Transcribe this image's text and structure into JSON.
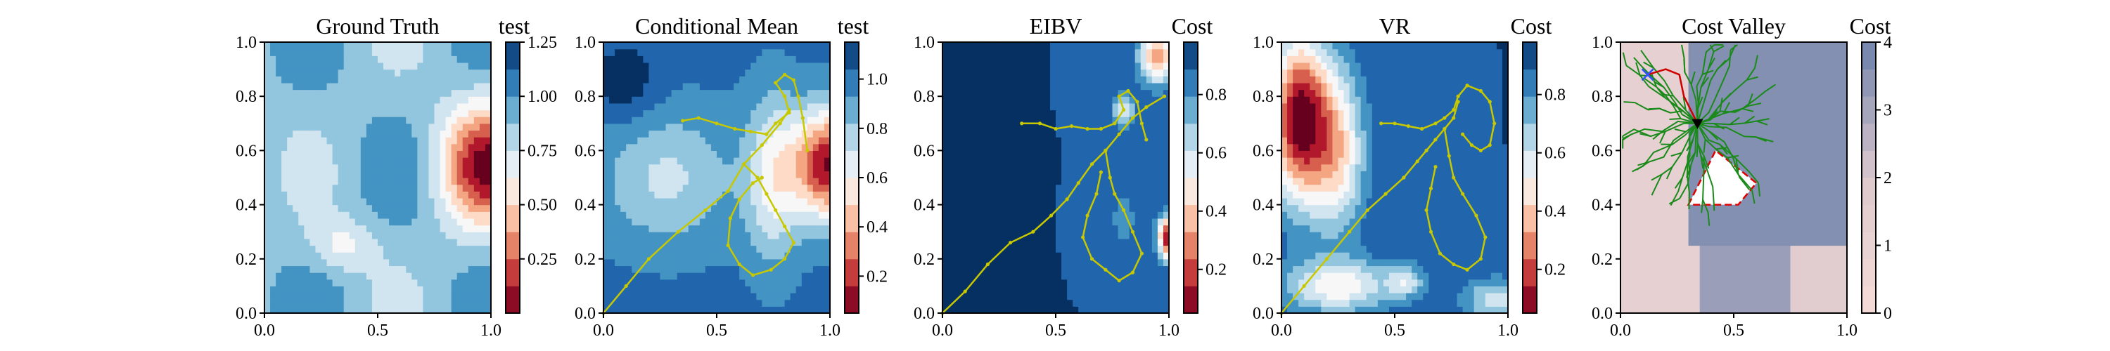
{
  "chart_data": [
    {
      "type": "heatmap",
      "title": "Ground Truth",
      "colorbar_label": "test",
      "colormap": "RdBu",
      "xlim": [
        0,
        1
      ],
      "ylim": [
        0,
        1
      ],
      "xticks": [
        "0.0",
        "0.5",
        "1.0"
      ],
      "yticks": [
        "0.0",
        "0.2",
        "0.4",
        "0.6",
        "0.8",
        "1.0"
      ],
      "colorbar_ticks": [
        "0.25",
        "0.50",
        "0.75",
        "1.00",
        "1.25"
      ],
      "colorbar_range": [
        0.0,
        1.25
      ],
      "paths": []
    },
    {
      "type": "heatmap",
      "title": "Conditional Mean",
      "colorbar_label": "test",
      "colormap": "RdBu",
      "xlim": [
        0,
        1
      ],
      "ylim": [
        0,
        1
      ],
      "xticks": [
        "0.0",
        "0.5",
        "1.0"
      ],
      "yticks": [
        "0.0",
        "0.2",
        "0.4",
        "0.6",
        "0.8",
        "1.0"
      ],
      "colorbar_ticks": [
        "0.2",
        "0.4",
        "0.6",
        "0.8",
        "1.0"
      ],
      "colorbar_range": [
        0.05,
        1.15
      ],
      "paths": [
        {
          "color": "#c8c800",
          "points": [
            [
              0,
              0
            ],
            [
              0.1,
              0.1
            ],
            [
              0.2,
              0.2
            ],
            [
              0.33,
              0.3
            ],
            [
              0.45,
              0.38
            ],
            [
              0.55,
              0.45
            ],
            [
              0.62,
              0.55
            ],
            [
              0.7,
              0.62
            ],
            [
              0.78,
              0.7
            ],
            [
              0.82,
              0.75
            ]
          ]
        },
        {
          "color": "#c8c800",
          "points": [
            [
              0.35,
              0.71
            ],
            [
              0.42,
              0.72
            ],
            [
              0.5,
              0.7
            ],
            [
              0.58,
              0.68
            ],
            [
              0.65,
              0.67
            ],
            [
              0.72,
              0.66
            ],
            [
              0.76,
              0.7
            ],
            [
              0.82,
              0.74
            ],
            [
              0.8,
              0.8
            ],
            [
              0.76,
              0.85
            ],
            [
              0.8,
              0.88
            ],
            [
              0.84,
              0.86
            ],
            [
              0.86,
              0.8
            ],
            [
              0.88,
              0.72
            ],
            [
              0.9,
              0.6
            ]
          ]
        },
        {
          "color": "#c8c800",
          "points": [
            [
              0.62,
              0.55
            ],
            [
              0.68,
              0.5
            ],
            [
              0.72,
              0.44
            ],
            [
              0.76,
              0.38
            ],
            [
              0.8,
              0.32
            ],
            [
              0.84,
              0.26
            ],
            [
              0.8,
              0.2
            ],
            [
              0.74,
              0.16
            ],
            [
              0.66,
              0.14
            ],
            [
              0.6,
              0.18
            ],
            [
              0.55,
              0.25
            ],
            [
              0.56,
              0.35
            ],
            [
              0.6,
              0.42
            ],
            [
              0.66,
              0.48
            ],
            [
              0.7,
              0.5
            ]
          ]
        }
      ]
    },
    {
      "type": "heatmap",
      "title": "EIBV",
      "colorbar_label": "Cost",
      "colormap": "RdBu",
      "xlim": [
        0,
        1
      ],
      "ylim": [
        0,
        1
      ],
      "xticks": [
        "0.0",
        "0.5",
        "1.0"
      ],
      "yticks": [
        "0.0",
        "0.2",
        "0.4",
        "0.6",
        "0.8",
        "1.0"
      ],
      "colorbar_ticks": [
        "0.2",
        "0.4",
        "0.6",
        "0.8"
      ],
      "colorbar_range": [
        0.05,
        0.98
      ],
      "paths": [
        {
          "color": "#c8c800",
          "points": [
            [
              0,
              0
            ],
            [
              0.1,
              0.08
            ],
            [
              0.2,
              0.18
            ],
            [
              0.3,
              0.26
            ],
            [
              0.4,
              0.3
            ],
            [
              0.48,
              0.36
            ],
            [
              0.55,
              0.42
            ],
            [
              0.6,
              0.48
            ],
            [
              0.66,
              0.55
            ],
            [
              0.72,
              0.6
            ],
            [
              0.78,
              0.66
            ],
            [
              0.84,
              0.72
            ],
            [
              0.9,
              0.76
            ],
            [
              0.98,
              0.8
            ]
          ]
        },
        {
          "color": "#c8c800",
          "points": [
            [
              0.35,
              0.7
            ],
            [
              0.43,
              0.7
            ],
            [
              0.5,
              0.68
            ],
            [
              0.57,
              0.69
            ],
            [
              0.64,
              0.68
            ],
            [
              0.7,
              0.68
            ],
            [
              0.76,
              0.7
            ],
            [
              0.8,
              0.75
            ],
            [
              0.78,
              0.8
            ],
            [
              0.82,
              0.82
            ],
            [
              0.86,
              0.78
            ],
            [
              0.88,
              0.7
            ],
            [
              0.9,
              0.64
            ]
          ]
        },
        {
          "color": "#c8c800",
          "points": [
            [
              0.72,
              0.6
            ],
            [
              0.74,
              0.5
            ],
            [
              0.76,
              0.44
            ],
            [
              0.8,
              0.38
            ],
            [
              0.84,
              0.3
            ],
            [
              0.88,
              0.22
            ],
            [
              0.84,
              0.15
            ],
            [
              0.78,
              0.12
            ],
            [
              0.72,
              0.16
            ],
            [
              0.66,
              0.2
            ],
            [
              0.62,
              0.28
            ],
            [
              0.64,
              0.36
            ],
            [
              0.68,
              0.44
            ],
            [
              0.7,
              0.52
            ]
          ]
        }
      ]
    },
    {
      "type": "heatmap",
      "title": "VR",
      "colorbar_label": "Cost",
      "colormap": "RdBu",
      "xlim": [
        0,
        1
      ],
      "ylim": [
        0,
        1
      ],
      "xticks": [
        "0.0",
        "0.5",
        "1.0"
      ],
      "yticks": [
        "0.0",
        "0.2",
        "0.4",
        "0.6",
        "0.8",
        "1.0"
      ],
      "colorbar_ticks": [
        "0.2",
        "0.4",
        "0.6",
        "0.8"
      ],
      "colorbar_range": [
        0.05,
        0.98
      ],
      "paths": [
        {
          "color": "#c8c800",
          "points": [
            [
              0,
              0
            ],
            [
              0.1,
              0.1
            ],
            [
              0.2,
              0.2
            ],
            [
              0.3,
              0.3
            ],
            [
              0.38,
              0.38
            ],
            [
              0.46,
              0.44
            ],
            [
              0.54,
              0.5
            ],
            [
              0.6,
              0.56
            ],
            [
              0.64,
              0.6
            ],
            [
              0.68,
              0.64
            ],
            [
              0.72,
              0.68
            ],
            [
              0.76,
              0.72
            ],
            [
              0.78,
              0.78
            ]
          ]
        },
        {
          "color": "#c8c800",
          "points": [
            [
              0.44,
              0.7
            ],
            [
              0.5,
              0.7
            ],
            [
              0.56,
              0.69
            ],
            [
              0.62,
              0.68
            ],
            [
              0.68,
              0.7
            ],
            [
              0.72,
              0.72
            ],
            [
              0.76,
              0.75
            ],
            [
              0.78,
              0.8
            ],
            [
              0.82,
              0.84
            ],
            [
              0.88,
              0.82
            ],
            [
              0.92,
              0.78
            ],
            [
              0.94,
              0.7
            ],
            [
              0.92,
              0.62
            ],
            [
              0.88,
              0.6
            ],
            [
              0.84,
              0.62
            ],
            [
              0.8,
              0.66
            ]
          ]
        },
        {
          "color": "#c8c800",
          "points": [
            [
              0.72,
              0.68
            ],
            [
              0.74,
              0.58
            ],
            [
              0.76,
              0.5
            ],
            [
              0.8,
              0.44
            ],
            [
              0.86,
              0.36
            ],
            [
              0.9,
              0.28
            ],
            [
              0.88,
              0.2
            ],
            [
              0.82,
              0.16
            ],
            [
              0.76,
              0.18
            ],
            [
              0.7,
              0.22
            ],
            [
              0.66,
              0.3
            ],
            [
              0.64,
              0.38
            ],
            [
              0.66,
              0.46
            ],
            [
              0.68,
              0.54
            ]
          ]
        }
      ]
    },
    {
      "type": "heatmap",
      "title": "Cost Valley",
      "colorbar_label": "Cost",
      "colormap": "PuBu-like",
      "xlim": [
        0,
        1
      ],
      "ylim": [
        0,
        1
      ],
      "xticks": [
        "0.0",
        "0.5",
        "1.0"
      ],
      "yticks": [
        "0.0",
        "0.2",
        "0.4",
        "0.6",
        "0.8",
        "1.0"
      ],
      "colorbar_ticks": [
        "0",
        "1",
        "2",
        "3",
        "4"
      ],
      "colorbar_range": [
        0,
        4
      ],
      "start_marker": {
        "x": 0.12,
        "y": 0.88,
        "color": "#3050ff"
      },
      "goal_marker": {
        "x": 0.34,
        "y": 0.7,
        "color": "#000000"
      },
      "obstacle_polygon": [
        [
          0.3,
          0.4
        ],
        [
          0.42,
          0.6
        ],
        [
          0.54,
          0.52
        ],
        [
          0.6,
          0.48
        ],
        [
          0.52,
          0.4
        ],
        [
          0.36,
          0.4
        ]
      ],
      "paths": [
        {
          "color": "#d00000",
          "points": [
            [
              0.12,
              0.88
            ],
            [
              0.2,
              0.9
            ],
            [
              0.26,
              0.88
            ],
            [
              0.28,
              0.8
            ],
            [
              0.34,
              0.7
            ]
          ]
        }
      ]
    }
  ]
}
